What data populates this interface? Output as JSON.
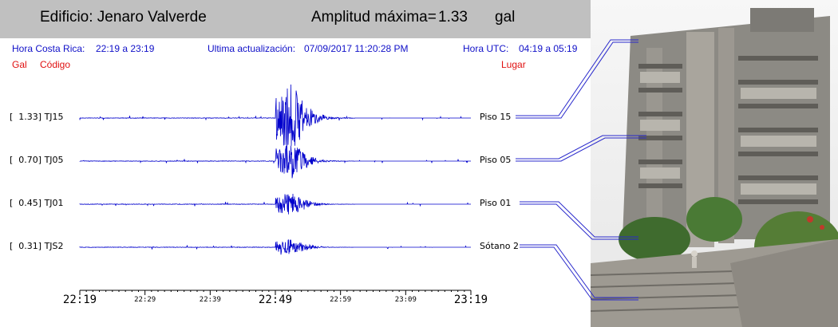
{
  "header": {
    "building": "Edificio: Jenaro Valverde",
    "amplitude_label": "Amplitud máxima=",
    "amplitude_value": "1.33",
    "amplitude_unit": "gal"
  },
  "info": {
    "local_time_label": "Hora Costa Rica:",
    "local_time_range": "22:19 a 23:19",
    "update_label": "Ultima actualización:",
    "update_value": "07/09/2017 11:20:28 PM",
    "utc_label": "Hora UTC:",
    "utc_range": "04:19 a 05:19"
  },
  "columns": {
    "gal": "Gal",
    "code": "Código",
    "place": "Lugar"
  },
  "colors": {
    "trace": "#0000cc",
    "info_text": "#1010c8",
    "column_header": "#e01010",
    "header_bg": "#c0c0c0"
  },
  "chart_data": {
    "type": "line",
    "x_unit": "local time",
    "xlim": [
      "22:19",
      "23:19"
    ],
    "event_time": "22:49",
    "series": [
      {
        "name": "TJ15",
        "amplitude_gal": 1.33,
        "label": "[  1.33] TJ15",
        "place": "Piso 15"
      },
      {
        "name": "TJ05",
        "amplitude_gal": 0.7,
        "label": "[  0.70] TJ05",
        "place": "Piso 05"
      },
      {
        "name": "TJ01",
        "amplitude_gal": 0.45,
        "label": "[  0.45] TJ01",
        "place": "Piso 01"
      },
      {
        "name": "TJS2",
        "amplitude_gal": 0.31,
        "label": "[  0.31] TJS2",
        "place": "Sótano 2"
      }
    ],
    "major_ticks": [
      "22:19",
      "22:49",
      "23:19"
    ],
    "minor_ticks": [
      "22:29",
      "22:39",
      "22:59",
      "23:09"
    ]
  },
  "photo": {
    "subject": "building-photo"
  }
}
